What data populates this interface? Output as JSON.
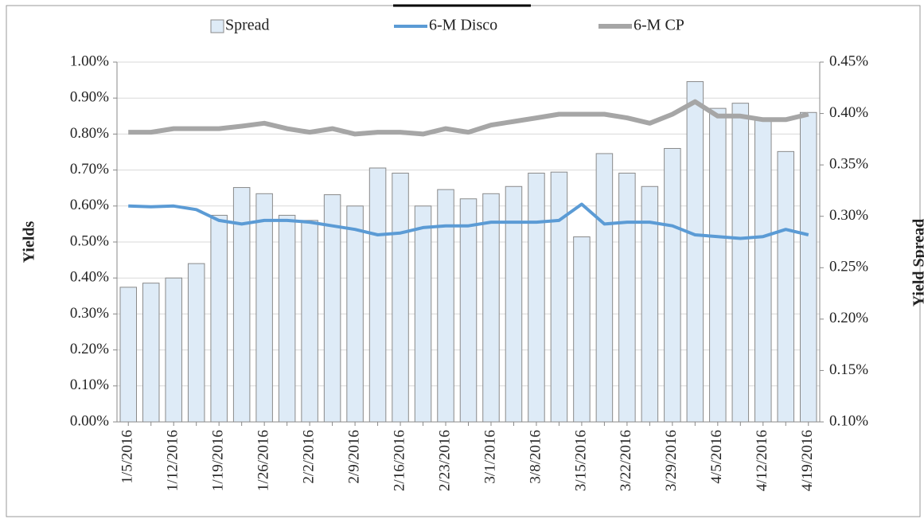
{
  "chart_data": {
    "type": "bar_line",
    "y_label": "Yields",
    "y2_label": "Yield Spread",
    "categories": [
      "1/5/2016",
      null,
      "1/12/2016",
      null,
      "1/19/2016",
      null,
      "1/26/2016",
      null,
      "2/2/2016",
      null,
      "2/9/2016",
      null,
      "2/16/2016",
      null,
      "2/23/2016",
      null,
      "3/1/2016",
      null,
      "3/8/2016",
      null,
      "3/15/2016",
      null,
      "3/22/2016",
      null,
      "3/29/2016",
      null,
      "4/5/2016",
      null,
      "4/12/2016",
      null,
      "4/19/2016"
    ],
    "series": [
      {
        "name": "Spread",
        "type": "bar",
        "axis": "y2",
        "color": "#deebf7",
        "values": [
          0.231,
          0.235,
          0.24,
          0.254,
          0.301,
          0.328,
          0.322,
          0.301,
          0.296,
          0.321,
          0.31,
          0.347,
          0.342,
          0.31,
          0.326,
          0.317,
          0.322,
          0.329,
          0.342,
          0.343,
          0.28,
          0.361,
          0.342,
          0.329,
          0.366,
          0.431,
          0.405,
          0.41,
          0.394,
          0.363,
          0.401
        ]
      },
      {
        "name": "6-M Disco",
        "type": "line",
        "color": "#5b9bd5",
        "values": [
          0.6,
          0.598,
          0.6,
          0.59,
          0.56,
          0.55,
          0.56,
          0.56,
          0.555,
          0.545,
          0.535,
          0.52,
          0.525,
          0.54,
          0.545,
          0.545,
          0.555,
          0.555,
          0.555,
          0.56,
          0.605,
          0.55,
          0.555,
          0.555,
          0.545,
          0.52,
          0.515,
          0.51,
          0.515,
          0.535,
          0.52
        ]
      },
      {
        "name": "6-M CP",
        "type": "line",
        "color": "#a6a6a6",
        "values": [
          0.805,
          0.805,
          0.815,
          0.815,
          0.815,
          0.822,
          0.83,
          0.815,
          0.805,
          0.815,
          0.8,
          0.805,
          0.805,
          0.8,
          0.815,
          0.805,
          0.825,
          0.835,
          0.845,
          0.855,
          0.855,
          0.855,
          0.845,
          0.83,
          0.855,
          0.89,
          0.85,
          0.85,
          0.84,
          0.84,
          0.855
        ]
      }
    ],
    "ylim": [
      0,
      1
    ],
    "yticks": [
      {
        "value": 0,
        "label": "0.00%"
      },
      {
        "value": 0.1,
        "label": "0.10%"
      },
      {
        "value": 0.2,
        "label": "0.20%"
      },
      {
        "value": 0.3,
        "label": "0.30%"
      },
      {
        "value": 0.4,
        "label": "0.40%"
      },
      {
        "value": 0.5,
        "label": "0.50%"
      },
      {
        "value": 0.6,
        "label": "0.60%"
      },
      {
        "value": 0.7,
        "label": "0.70%"
      },
      {
        "value": 0.8,
        "label": "0.80%"
      },
      {
        "value": 0.9,
        "label": "0.90%"
      },
      {
        "value": 1,
        "label": "1.00%"
      }
    ],
    "y2lim": [
      0.1,
      0.45
    ],
    "y2ticks": [
      {
        "value": 0.1,
        "label": "0.10%"
      },
      {
        "value": 0.15,
        "label": "0.15%"
      },
      {
        "value": 0.2,
        "label": "0.20%"
      },
      {
        "value": 0.25,
        "label": "0.25%"
      },
      {
        "value": 0.3,
        "label": "0.30%"
      },
      {
        "value": 0.35,
        "label": "0.35%"
      },
      {
        "value": 0.4,
        "label": "0.40%"
      },
      {
        "value": 0.45,
        "label": "0.45%"
      }
    ],
    "grid": true,
    "legend": "top"
  }
}
